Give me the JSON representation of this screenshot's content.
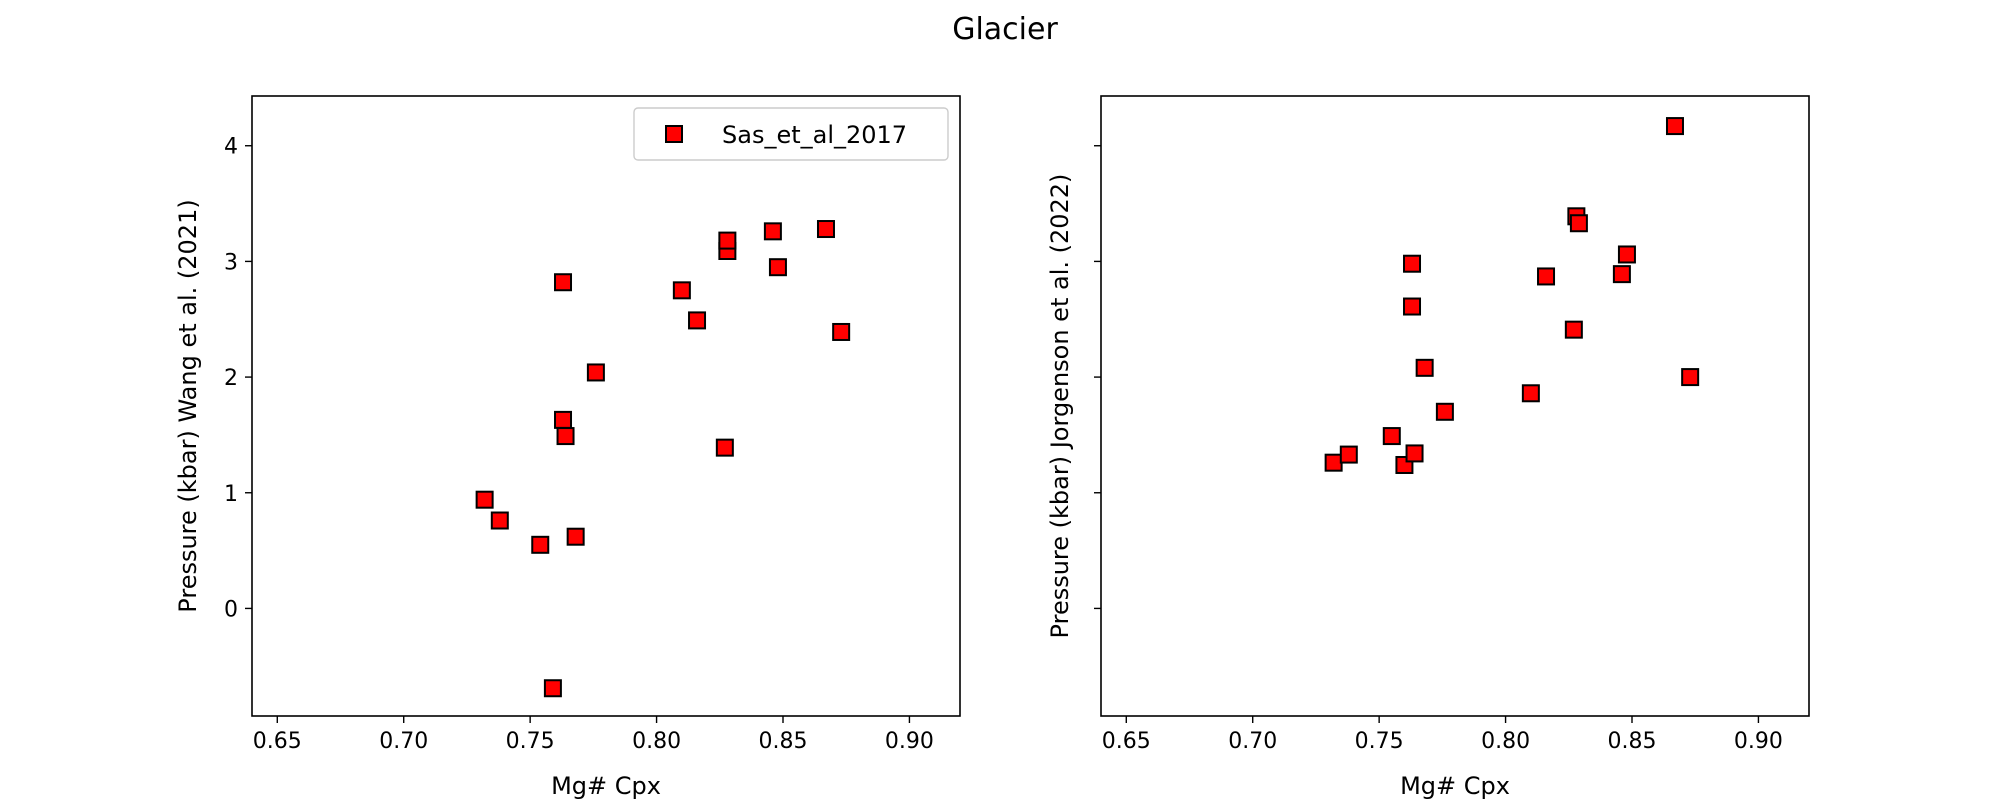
{
  "figure": {
    "suptitle": "Glacier"
  },
  "colors": {
    "marker_fill": "#ff0000",
    "marker_edge": "#000000",
    "legend_edge": "#cccccc"
  },
  "chart_data": [
    {
      "type": "scatter",
      "xlabel": "Mg# Cpx",
      "ylabel": "Pressure (kbar) Wang et al. (2021)",
      "xlim": [
        0.64,
        0.92
      ],
      "ylim": [
        -0.93,
        4.43
      ],
      "xticks": [
        0.65,
        0.7,
        0.75,
        0.8,
        0.85,
        0.9
      ],
      "xtick_labels": [
        "0.65",
        "0.70",
        "0.75",
        "0.80",
        "0.85",
        "0.90"
      ],
      "yticks": [
        0,
        1,
        2,
        3,
        4
      ],
      "ytick_labels": [
        "0",
        "1",
        "2",
        "3",
        "4"
      ],
      "legend": {
        "position": "top-right",
        "show": true
      },
      "series": [
        {
          "name": "Sas_et_al_2017",
          "marker": "square",
          "x": [
            0.732,
            0.738,
            0.754,
            0.759,
            0.763,
            0.763,
            0.764,
            0.768,
            0.776,
            0.81,
            0.816,
            0.827,
            0.828,
            0.828,
            0.846,
            0.848,
            0.867,
            0.873
          ],
          "y": [
            0.94,
            0.76,
            0.55,
            -0.69,
            2.82,
            1.63,
            1.49,
            0.62,
            2.04,
            2.75,
            2.49,
            1.39,
            3.09,
            3.18,
            3.26,
            2.95,
            3.28,
            2.39
          ]
        }
      ]
    },
    {
      "type": "scatter",
      "xlabel": "Mg# Cpx",
      "ylabel": "Pressure (kbar) Jorgenson et al. (2022)",
      "xlim": [
        0.64,
        0.92
      ],
      "ylim": [
        -0.93,
        4.43
      ],
      "xticks": [
        0.65,
        0.7,
        0.75,
        0.8,
        0.85,
        0.9
      ],
      "xtick_labels": [
        "0.65",
        "0.70",
        "0.75",
        "0.80",
        "0.85",
        "0.90"
      ],
      "yticks": [
        0,
        1,
        2,
        3,
        4
      ],
      "ytick_labels": [
        "",
        "",
        "",
        "",
        ""
      ],
      "legend": {
        "show": false
      },
      "series": [
        {
          "marker": "square",
          "x": [
            0.732,
            0.738,
            0.755,
            0.76,
            0.763,
            0.763,
            0.764,
            0.768,
            0.776,
            0.81,
            0.816,
            0.827,
            0.828,
            0.829,
            0.846,
            0.848,
            0.867,
            0.873
          ],
          "y": [
            1.26,
            1.33,
            1.49,
            1.24,
            2.98,
            2.61,
            1.34,
            2.08,
            1.7,
            1.86,
            2.87,
            2.41,
            3.39,
            3.33,
            2.89,
            3.06,
            4.17,
            2.0
          ]
        }
      ]
    }
  ]
}
